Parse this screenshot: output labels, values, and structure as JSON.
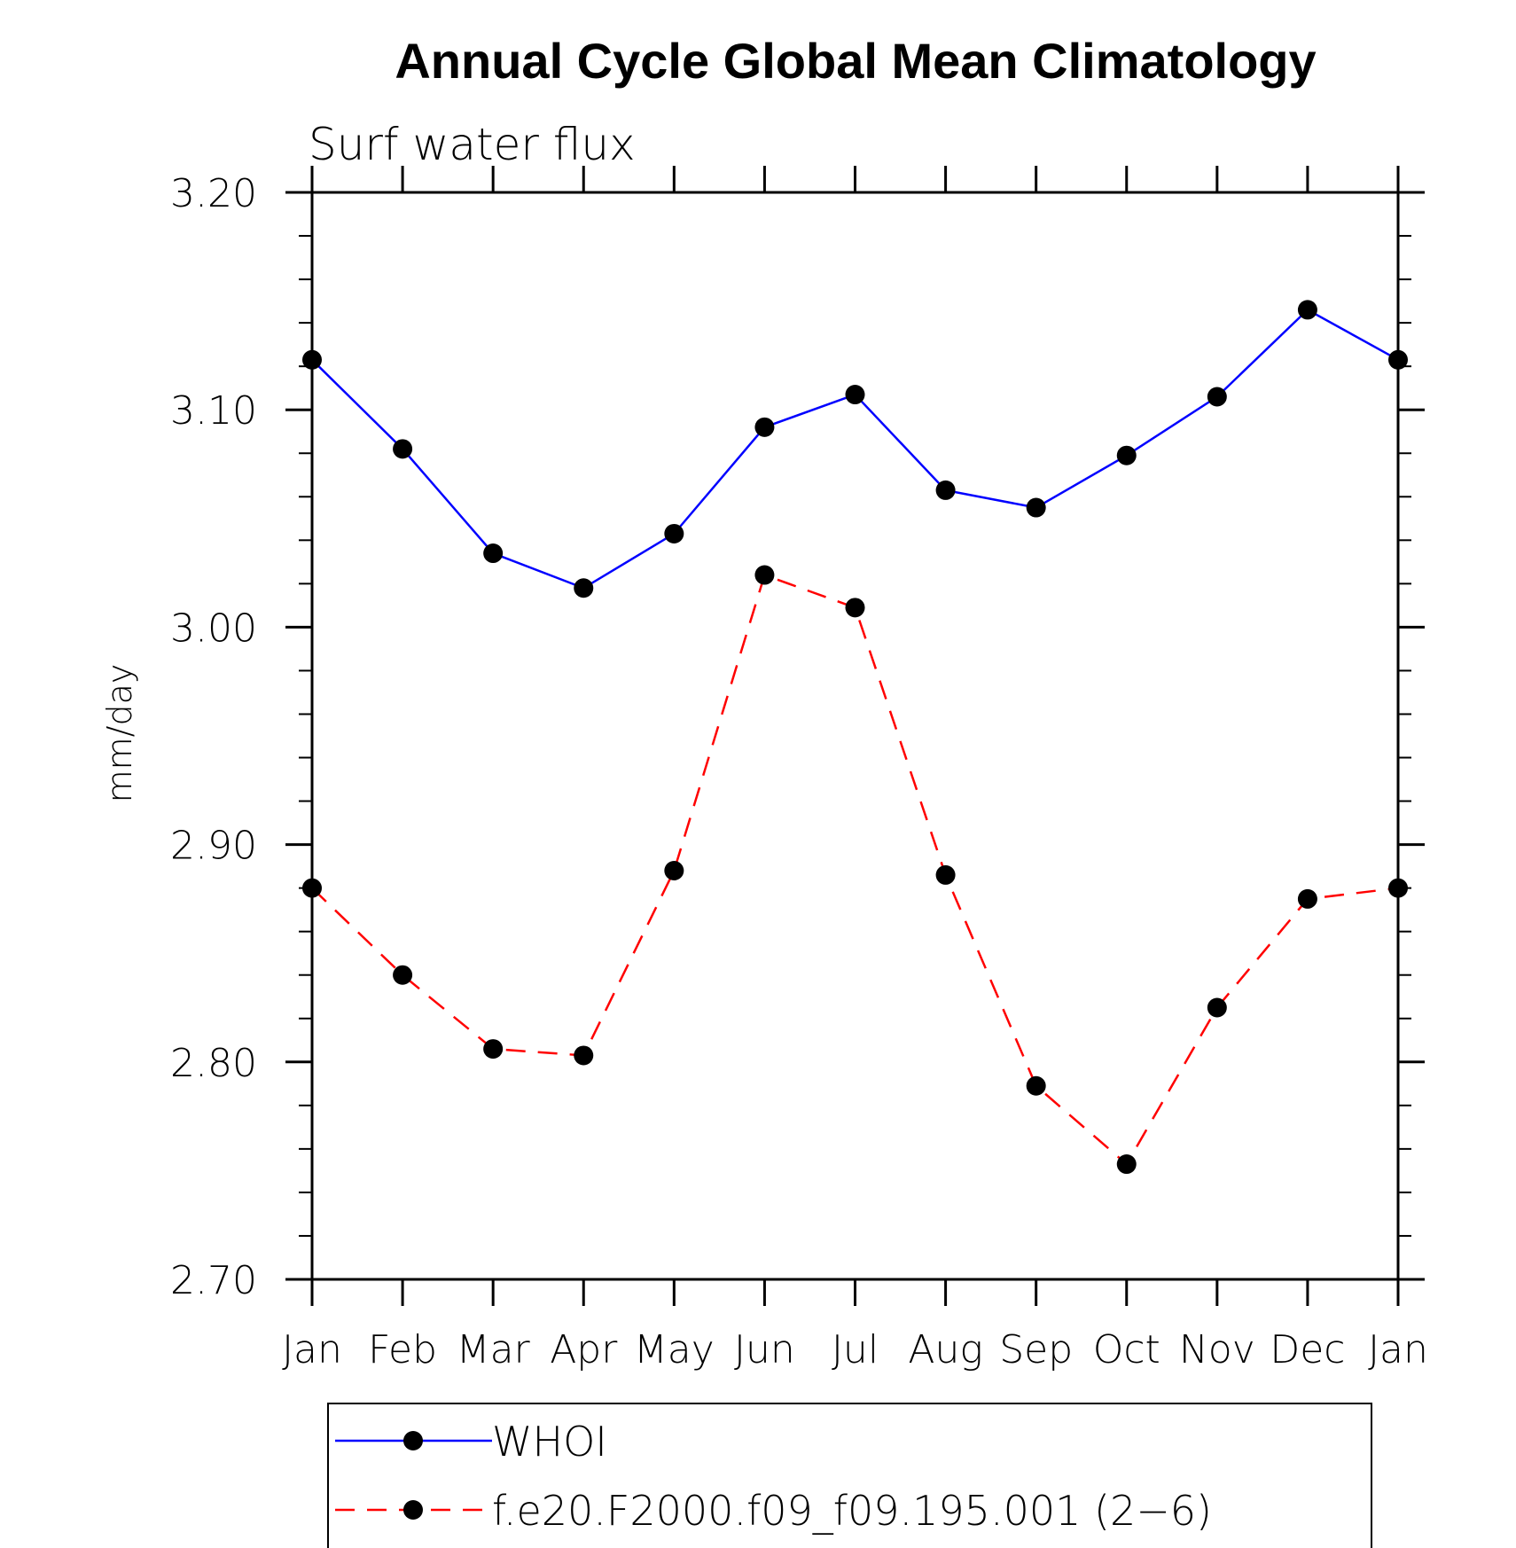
{
  "chart_data": {
    "type": "line",
    "title": "Annual Cycle Global Mean Climatology",
    "subtitle": "Surf water flux",
    "xlabel": "",
    "ylabel": "mm/day",
    "categories": [
      "Jan",
      "Feb",
      "Mar",
      "Apr",
      "May",
      "Jun",
      "Jul",
      "Aug",
      "Sep",
      "Oct",
      "Nov",
      "Dec",
      "Jan"
    ],
    "ylim": [
      2.7,
      3.2
    ],
    "yticks": [
      "2.70",
      "2.80",
      "2.90",
      "3.00",
      "3.10",
      "3.20"
    ],
    "grid": false,
    "legend_position": "bottom",
    "series": [
      {
        "name": "WHOI",
        "color": "#0000ff",
        "line_style": "solid",
        "marker": "filled-circle",
        "values": [
          3.123,
          3.082,
          3.034,
          3.018,
          3.043,
          3.092,
          3.107,
          3.063,
          3.055,
          3.079,
          3.106,
          3.146,
          3.123
        ]
      },
      {
        "name": "f.e20.F2000.f09_f09.195.001 (2−6)",
        "color": "#ff0000",
        "line_style": "dashed",
        "marker": "filled-circle",
        "values": [
          2.88,
          2.84,
          2.806,
          2.803,
          2.888,
          3.024,
          3.009,
          2.886,
          2.789,
          2.753,
          2.825,
          2.875,
          2.88
        ]
      }
    ]
  }
}
